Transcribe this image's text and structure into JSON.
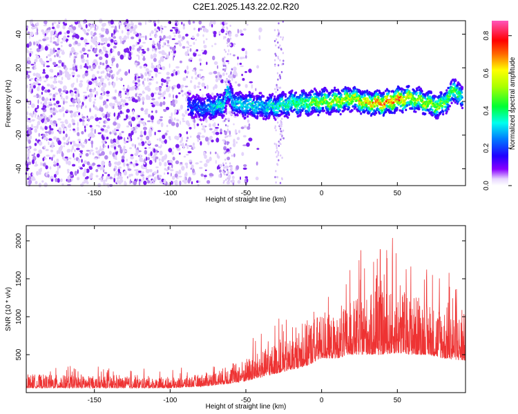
{
  "title": "C2E1.2025.143.22.02.R20",
  "chart_data": [
    {
      "type": "heatmap",
      "name": "spectrogram",
      "xlabel": "Height of straight line (km)",
      "ylabel": "Frequency (Hz)",
      "xlim": [
        -195,
        95
      ],
      "ylim": [
        -50,
        48
      ],
      "xticks": [
        -150,
        -100,
        -50,
        0,
        50
      ],
      "yticks": [
        -40,
        -20,
        0,
        20,
        40
      ],
      "colorbar": {
        "label": "Normalized spectral amplitude",
        "range": [
          0,
          0.88
        ],
        "ticks": [
          0.0,
          0.2,
          0.4,
          0.6,
          0.8
        ]
      },
      "ridge": {
        "x": [
          -88,
          -80,
          -70,
          -65,
          -62,
          -58,
          -55,
          -50,
          -40,
          -30,
          -20,
          -10,
          0,
          10,
          20,
          30,
          40,
          50,
          60,
          70,
          78,
          85,
          88,
          93
        ],
        "freq_hz": [
          -2,
          -4,
          -3,
          -2,
          6,
          0,
          -2,
          -2,
          -3,
          -3,
          -1,
          -1,
          0,
          0,
          2,
          -1,
          -1,
          1,
          2,
          -1,
          -3,
          3,
          8,
          1
        ],
        "peak_amplitude": [
          0.15,
          0.2,
          0.3,
          0.35,
          0.3,
          0.3,
          0.3,
          0.35,
          0.3,
          0.35,
          0.4,
          0.45,
          0.5,
          0.6,
          0.55,
          0.65,
          0.8,
          0.75,
          0.6,
          0.55,
          0.5,
          0.45,
          0.5,
          0.3
        ]
      },
      "noise_boundary_km": -65
    },
    {
      "type": "line",
      "name": "snr",
      "xlabel": "Height of straight line (km)",
      "ylabel": "SNR (10 * v/v)",
      "xlim": [
        -195,
        95
      ],
      "ylim": [
        0,
        2200
      ],
      "xticks": [
        -150,
        -100,
        -50,
        0,
        50
      ],
      "yticks": [
        500,
        1000,
        1500,
        2000
      ],
      "color": "#ee3333",
      "envelope": {
        "x": [
          -195,
          -150,
          -100,
          -80,
          -60,
          -50,
          -40,
          -30,
          -20,
          -10,
          0,
          10,
          20,
          30,
          40,
          50,
          60,
          70,
          80,
          95
        ],
        "baseline": [
          60,
          60,
          60,
          80,
          120,
          150,
          200,
          250,
          300,
          350,
          450,
          450,
          500,
          500,
          500,
          520,
          500,
          500,
          450,
          420
        ],
        "max": [
          400,
          350,
          300,
          380,
          550,
          700,
          820,
          1000,
          1000,
          1450,
          1550,
          1450,
          1800,
          1950,
          2000,
          2100,
          2000,
          1700,
          1750,
          1550
        ]
      }
    }
  ]
}
